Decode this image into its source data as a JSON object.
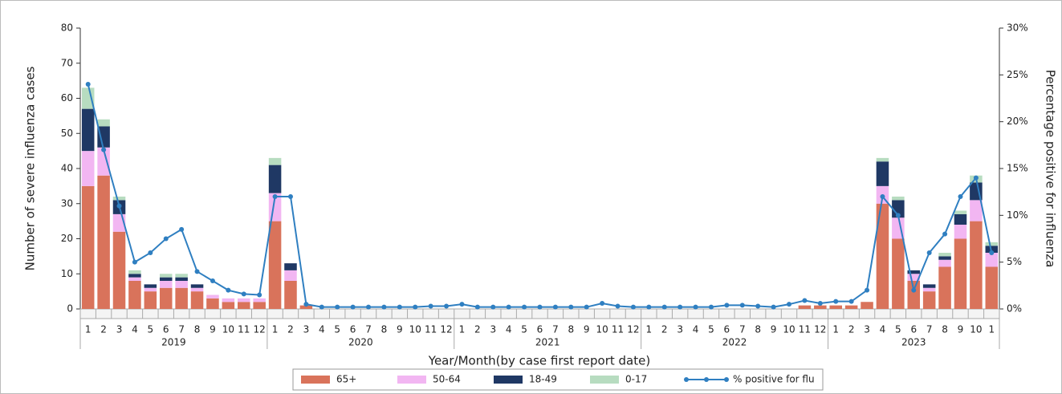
{
  "chart_data": {
    "type": "bar",
    "stacked": true,
    "x_label": "Year/Month(by case first report date)",
    "y_label": "Number of severe influenza cases",
    "y2_label": "Percentage positive for influenza",
    "categories": [
      "1",
      "2",
      "3",
      "4",
      "5",
      "6",
      "7",
      "8",
      "9",
      "10",
      "11",
      "12",
      "1",
      "2",
      "3",
      "4",
      "5",
      "6",
      "7",
      "8",
      "9",
      "10",
      "11",
      "12",
      "1",
      "2",
      "3",
      "4",
      "5",
      "6",
      "7",
      "8",
      "9",
      "10",
      "11",
      "12",
      "1",
      "2",
      "3",
      "4",
      "5",
      "6",
      "7",
      "8",
      "9",
      "10",
      "11",
      "12",
      "1",
      "2",
      "3",
      "4",
      "5",
      "6",
      "7",
      "8",
      "9",
      "10",
      "1"
    ],
    "years": [
      "2019",
      "2020",
      "2021",
      "2022",
      "2023"
    ],
    "ylim": [
      0,
      80
    ],
    "yticks": [
      0,
      10,
      20,
      30,
      40,
      50,
      60,
      70,
      80
    ],
    "y2lim": [
      0,
      30
    ],
    "y2ticks": [
      {
        "value": 0,
        "label": "0%"
      },
      {
        "value": 5,
        "label": "5%"
      },
      {
        "value": 10,
        "label": "10%"
      },
      {
        "value": 15,
        "label": "15%"
      },
      {
        "value": 20,
        "label": "20%"
      },
      {
        "value": 25,
        "label": "25%"
      },
      {
        "value": 30,
        "label": "30%"
      }
    ],
    "series": [
      {
        "name": "65+",
        "color": "#d9735b",
        "values": [
          35,
          38,
          22,
          8,
          5,
          6,
          6,
          5,
          3,
          2,
          2,
          2,
          25,
          8,
          1,
          0,
          0,
          0,
          0,
          0,
          0,
          0,
          0,
          0,
          0,
          0,
          0,
          0,
          0,
          0,
          0,
          0,
          0,
          0,
          0,
          0,
          0,
          0,
          0,
          0,
          0,
          0,
          0,
          0,
          0,
          0,
          1,
          1,
          1,
          1,
          2,
          30,
          20,
          8,
          5,
          12,
          20,
          25,
          12
        ]
      },
      {
        "name": "50-64",
        "color": "#f2b6f2",
        "values": [
          10,
          8,
          5,
          1,
          1,
          2,
          2,
          1,
          1,
          1,
          1,
          1,
          8,
          3,
          0,
          0,
          0,
          0,
          0,
          0,
          0,
          0,
          0,
          0,
          0,
          0,
          0,
          0,
          0,
          0,
          0,
          0,
          0,
          0,
          0,
          0,
          0,
          0,
          0,
          0,
          0,
          0,
          0,
          0,
          0,
          0,
          0,
          0,
          0,
          0,
          0,
          5,
          6,
          2,
          1,
          2,
          4,
          6,
          4
        ]
      },
      {
        "name": "18-49",
        "color": "#1f3864",
        "values": [
          12,
          6,
          4,
          1,
          1,
          1,
          1,
          1,
          0,
          0,
          0,
          0,
          8,
          2,
          0,
          0,
          0,
          0,
          0,
          0,
          0,
          0,
          0,
          0,
          0,
          0,
          0,
          0,
          0,
          0,
          0,
          0,
          0,
          0,
          0,
          0,
          0,
          0,
          0,
          0,
          0,
          0,
          0,
          0,
          0,
          0,
          0,
          0,
          0,
          0,
          0,
          7,
          5,
          1,
          1,
          1,
          3,
          5,
          2
        ]
      },
      {
        "name": "0-17",
        "color": "#b7dcc0",
        "values": [
          6,
          2,
          1,
          1,
          0,
          1,
          1,
          0,
          0,
          0,
          0,
          0,
          2,
          0,
          0,
          0,
          0,
          0,
          0,
          0,
          0,
          0,
          0,
          0,
          0,
          0,
          0,
          0,
          0,
          0,
          0,
          0,
          0,
          0,
          0,
          0,
          0,
          0,
          0,
          0,
          0,
          0,
          0,
          0,
          0,
          0,
          0,
          0,
          0,
          0,
          0,
          1,
          1,
          0,
          0,
          1,
          1,
          2,
          1
        ]
      },
      {
        "name": "% positive for flu",
        "color": "#2f7fc1",
        "type": "line",
        "axis": "y2",
        "values": [
          24,
          17,
          11,
          5,
          6,
          7.5,
          8.5,
          4,
          3,
          2,
          1.6,
          1.5,
          12,
          12,
          0.5,
          0.2,
          0.2,
          0.2,
          0.2,
          0.2,
          0.2,
          0.2,
          0.3,
          0.3,
          0.5,
          0.2,
          0.2,
          0.2,
          0.2,
          0.2,
          0.2,
          0.2,
          0.2,
          0.6,
          0.3,
          0.2,
          0.2,
          0.2,
          0.2,
          0.2,
          0.2,
          0.4,
          0.4,
          0.3,
          0.2,
          0.5,
          0.9,
          0.6,
          0.8,
          0.8,
          2,
          12,
          10,
          2,
          6,
          8,
          12,
          14,
          6
        ]
      }
    ]
  }
}
